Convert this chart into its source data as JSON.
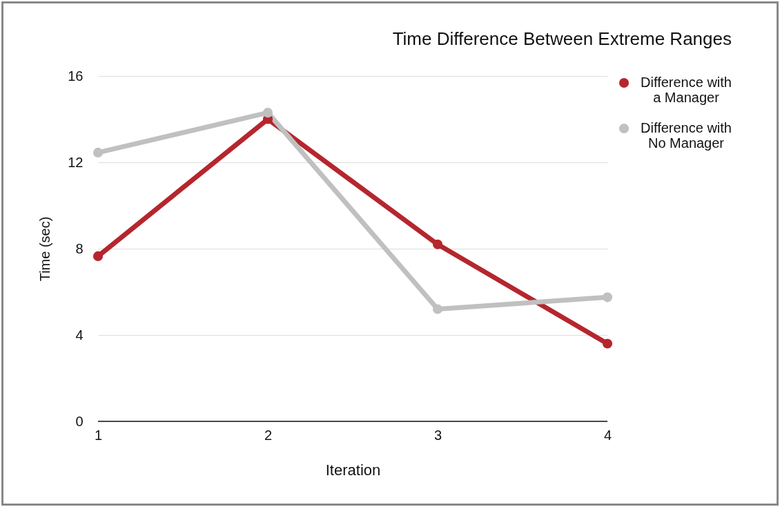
{
  "chart_data": {
    "type": "line",
    "title": "Time Difference Between Extreme Ranges",
    "xlabel": "Iteration",
    "ylabel": "Time (sec)",
    "categories": [
      "1",
      "2",
      "3",
      "4"
    ],
    "ylim": [
      0,
      16
    ],
    "yticks": [
      0,
      4,
      8,
      12,
      16
    ],
    "grid": "y",
    "legend": "right",
    "marker": "circle",
    "line_style": "solid",
    "series": [
      {
        "name": "Difference with a Manager",
        "color": "#b5262e",
        "values": [
          7.65,
          14.0,
          8.2,
          3.6
        ]
      },
      {
        "name": "Difference with No Manager",
        "color": "#c0c0c0",
        "values": [
          12.45,
          14.3,
          5.2,
          5.75
        ]
      }
    ]
  }
}
